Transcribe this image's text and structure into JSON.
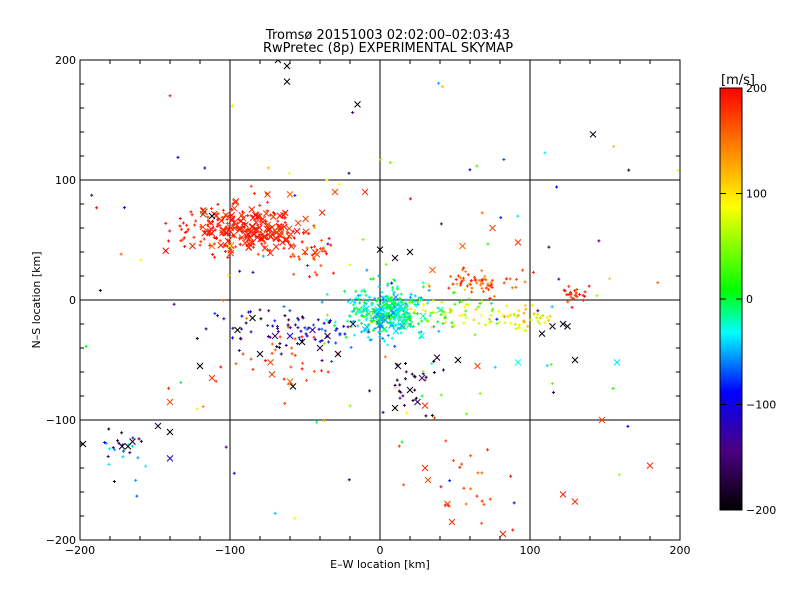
{
  "chart_data": {
    "type": "scatter",
    "title": "Tromsø 20151003 02:02:00–02:03:43",
    "subtitle": "RwPretec (8p) EXPERIMENTAL SKYMAP",
    "xlabel": "E–W location [km]",
    "ylabel": "N–S location [km]",
    "xlim": [
      -200,
      200
    ],
    "ylim": [
      -200,
      200
    ],
    "x_ticks": [
      "−200",
      "−100",
      "0",
      "100",
      "200"
    ],
    "y_ticks": [
      "−200",
      "−100",
      "0",
      "100",
      "200"
    ],
    "grid": true,
    "colorbar": {
      "label": "[m/s]",
      "range": [
        -200,
        200
      ],
      "ticks": [
        "200",
        "100",
        "0",
        "−100",
        "−200"
      ]
    },
    "clusters": [
      {
        "cx": -95,
        "cy": 60,
        "sx": 22,
        "sy": 12,
        "n": 160,
        "vmin": 170,
        "vmax": 200
      },
      {
        "cx": -45,
        "cy": 40,
        "sx": 8,
        "sy": 8,
        "n": 30,
        "vmin": 150,
        "vmax": 200
      },
      {
        "cx": 5,
        "cy": -10,
        "sx": 14,
        "sy": 10,
        "n": 260,
        "vmin": -60,
        "vmax": 20
      },
      {
        "cx": 45,
        "cy": -10,
        "sx": 20,
        "sy": 8,
        "n": 80,
        "vmin": 0,
        "vmax": 120
      },
      {
        "cx": 65,
        "cy": 15,
        "sx": 12,
        "sy": 5,
        "n": 60,
        "vmin": 130,
        "vmax": 200
      },
      {
        "cx": 95,
        "cy": -15,
        "sx": 10,
        "sy": 5,
        "n": 40,
        "vmin": 60,
        "vmax": 140
      },
      {
        "cx": -60,
        "cy": -25,
        "sx": 30,
        "sy": 10,
        "n": 80,
        "vmin": -200,
        "vmax": -60
      },
      {
        "cx": -65,
        "cy": -45,
        "sx": 20,
        "sy": 18,
        "n": 30,
        "vmin": 150,
        "vmax": 200
      },
      {
        "cx": 20,
        "cy": -70,
        "sx": 15,
        "sy": 15,
        "n": 25,
        "vmin": -200,
        "vmax": -150
      },
      {
        "cx": -175,
        "cy": -125,
        "sx": 12,
        "sy": 10,
        "n": 25,
        "vmin": -200,
        "vmax": 0
      },
      {
        "cx": 60,
        "cy": -150,
        "sx": 20,
        "sy": 25,
        "n": 25,
        "vmin": 150,
        "vmax": 200
      },
      {
        "cx": 130,
        "cy": 5,
        "sx": 5,
        "sy": 4,
        "n": 25,
        "vmin": 170,
        "vmax": 200
      },
      {
        "cx": 0,
        "cy": 0,
        "sx": 120,
        "sy": 110,
        "n": 120,
        "vmin": -200,
        "vmax": 200
      }
    ],
    "x_markers": [
      [
        -112,
        70
      ],
      [
        -97,
        60
      ],
      [
        -78,
        65
      ],
      [
        -70,
        58
      ],
      [
        -85,
        48
      ],
      [
        -75,
        88
      ],
      [
        -60,
        88
      ],
      [
        -88,
        55
      ],
      [
        -105,
        58
      ],
      [
        -65,
        48
      ],
      [
        -50,
        40
      ],
      [
        -42,
        38
      ],
      [
        -30,
        90
      ],
      [
        -10,
        90
      ],
      [
        -35,
        -30
      ],
      [
        -18,
        -20
      ],
      [
        -28,
        -45
      ],
      [
        -40,
        -40
      ],
      [
        -52,
        -35
      ],
      [
        -70,
        -30
      ],
      [
        -95,
        -25
      ],
      [
        -85,
        -15
      ],
      [
        -80,
        -45
      ],
      [
        -73,
        -52
      ],
      [
        -60,
        -68
      ],
      [
        -72,
        -62
      ],
      [
        -58,
        -72
      ],
      [
        -45,
        -25
      ],
      [
        -60,
        -30
      ],
      [
        10,
        -90
      ],
      [
        20,
        -75
      ],
      [
        28,
        -65
      ],
      [
        12,
        -55
      ],
      [
        38,
        -48
      ],
      [
        52,
        -50
      ],
      [
        65,
        -55
      ],
      [
        92,
        -52
      ],
      [
        130,
        -50
      ],
      [
        158,
        -52
      ],
      [
        108,
        -28
      ],
      [
        115,
        -22
      ],
      [
        122,
        -20
      ],
      [
        125,
        -22
      ],
      [
        20,
        40
      ],
      [
        35,
        25
      ],
      [
        55,
        45
      ],
      [
        75,
        60
      ],
      [
        92,
        48
      ],
      [
        25,
        -85
      ],
      [
        30,
        -88
      ],
      [
        -140,
        -110
      ],
      [
        -148,
        -105
      ],
      [
        -165,
        -118
      ],
      [
        -168,
        -122
      ],
      [
        -172,
        -122
      ],
      [
        -198,
        -120
      ],
      [
        -140,
        -132
      ],
      [
        -120,
        -55
      ],
      [
        -112,
        -65
      ],
      [
        -140,
        -85
      ],
      [
        30,
        -140
      ],
      [
        32,
        -150
      ],
      [
        45,
        -170
      ],
      [
        48,
        -185
      ],
      [
        82,
        -195
      ],
      [
        122,
        -162
      ],
      [
        130,
        -168
      ],
      [
        148,
        -100
      ],
      [
        180,
        -138
      ],
      [
        142,
        138
      ],
      [
        -62,
        182
      ],
      [
        -62,
        195
      ],
      [
        -68,
        200
      ],
      [
        -15,
        163
      ],
      [
        0,
        42
      ],
      [
        10,
        35
      ],
      [
        -112,
        45
      ],
      [
        -125,
        45
      ],
      [
        -100,
        45
      ]
    ],
    "x_marker_values": [
      -200,
      180,
      190,
      170,
      185,
      175,
      160,
      195,
      180,
      190,
      175,
      165,
      170,
      180,
      -180,
      -160,
      -190,
      -170,
      -200,
      -150,
      -200,
      -200,
      -190,
      170,
      160,
      175,
      -200,
      -120,
      -100,
      -200,
      -190,
      -150,
      -190,
      -180,
      -200,
      170,
      -30,
      -200,
      -40,
      -200,
      -180,
      -190,
      -200,
      -200,
      160,
      160,
      170,
      180,
      -170,
      180,
      -200,
      -180,
      -190,
      -200,
      -200,
      -200,
      -120,
      -200,
      180,
      170,
      180,
      170,
      175,
      180,
      190,
      185,
      180,
      170,
      180,
      -190,
      -200,
      -200,
      -200,
      -200,
      -200,
      -190,
      150,
      190,
      80
    ],
    "colorbar_stops": [
      "#000000",
      "#4b0082",
      "#0000ff",
      "#00ffff",
      "#00ff00",
      "#ffff00",
      "#ff8000",
      "#ff0000"
    ]
  }
}
